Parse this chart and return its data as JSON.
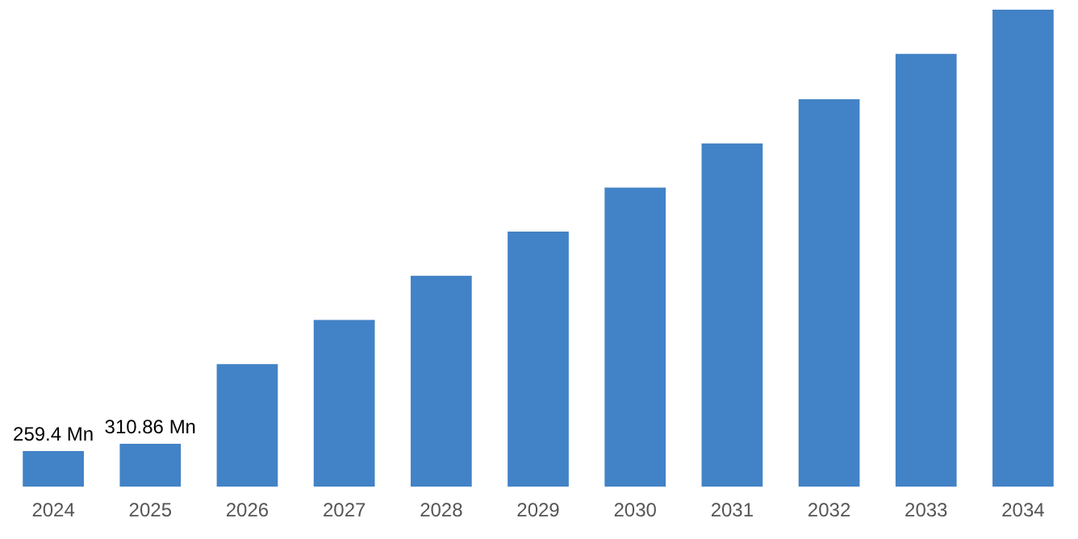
{
  "chart_data": {
    "type": "bar",
    "categories": [
      "2024",
      "2025",
      "2026",
      "2027",
      "2028",
      "2029",
      "2030",
      "2031",
      "2032",
      "2033",
      "2034"
    ],
    "values": [
      259.4,
      310.86,
      890,
      1210,
      1530,
      1850,
      2170,
      2490,
      2810,
      3140,
      3460
    ],
    "ylim": [
      0,
      3460
    ],
    "tick_labels": "x",
    "color": "#4282c6",
    "value_labels": [
      "259.4 Mn",
      "310.86 Mn",
      null,
      null,
      null,
      null,
      null,
      null,
      null,
      null,
      null
    ],
    "grid": false,
    "legend": false
  }
}
